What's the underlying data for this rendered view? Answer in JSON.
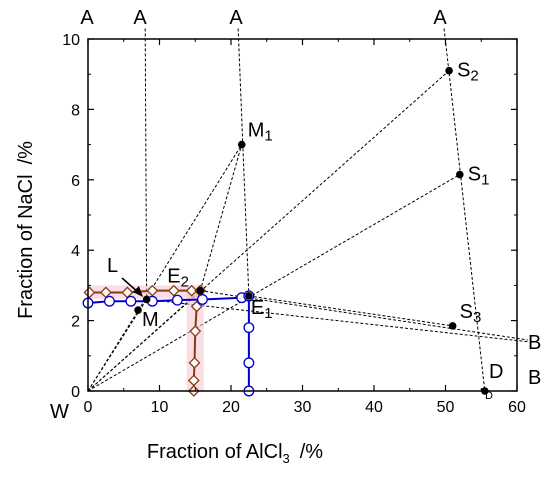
{
  "chart_data": {
    "type": "scatter",
    "title": "",
    "xlabel": "Fraction of AlCl",
    "xlabel_sub": "3",
    "xlabel_unit": "/%",
    "ylabel": "Fraction of NaCl",
    "ylabel_unit": "/%",
    "xlim": [
      0,
      60
    ],
    "ylim": [
      0,
      10
    ],
    "xticks": [
      0,
      10,
      20,
      30,
      40,
      50,
      60
    ],
    "yticks": [
      0,
      2,
      4,
      6,
      8,
      10
    ],
    "grid": false,
    "legend": "none",
    "colors": {
      "brown": "#8B3A0F",
      "blue": "#0000CC",
      "pink_highlight": "#F4C2D0",
      "point": "#000000",
      "dashed": "#000000"
    },
    "series": [
      {
        "style": "brown-diamond-line",
        "points": [
          {
            "x": 0.2,
            "y": 2.8
          },
          {
            "x": 2.5,
            "y": 2.8
          },
          {
            "x": 5.5,
            "y": 2.8
          },
          {
            "x": 9.0,
            "y": 2.85
          },
          {
            "x": 12.0,
            "y": 2.85
          },
          {
            "x": 14.5,
            "y": 2.85
          },
          {
            "x": 15.7,
            "y": 2.85
          }
        ]
      },
      {
        "style": "brown-diamond-line-vertical",
        "points": [
          {
            "x": 15.7,
            "y": 2.85
          },
          {
            "x": 15.2,
            "y": 2.4
          },
          {
            "x": 15.0,
            "y": 1.7
          },
          {
            "x": 14.9,
            "y": 0.8
          },
          {
            "x": 14.8,
            "y": 0.3
          },
          {
            "x": 14.8,
            "y": 0.0
          }
        ]
      },
      {
        "style": "blue-circle-line",
        "points": [
          {
            "x": 0.0,
            "y": 2.5
          },
          {
            "x": 3.0,
            "y": 2.55
          },
          {
            "x": 6.0,
            "y": 2.55
          },
          {
            "x": 9.0,
            "y": 2.55
          },
          {
            "x": 12.5,
            "y": 2.58
          },
          {
            "x": 16.0,
            "y": 2.6
          },
          {
            "x": 21.5,
            "y": 2.65
          },
          {
            "x": 22.5,
            "y": 2.7
          }
        ]
      },
      {
        "style": "blue-circle-line-vertical",
        "points": [
          {
            "x": 22.5,
            "y": 2.7
          },
          {
            "x": 22.5,
            "y": 1.8
          },
          {
            "x": 22.5,
            "y": 0.8
          },
          {
            "x": 22.5,
            "y": 0.0
          }
        ]
      }
    ],
    "key_points": [
      {
        "label": "S",
        "sub": "2",
        "x": 50.5,
        "y": 9.1
      },
      {
        "label": "S",
        "sub": "1",
        "x": 52.0,
        "y": 6.15
      },
      {
        "label": "S",
        "sub": "3",
        "x": 51.0,
        "y": 1.85
      },
      {
        "label": "M",
        "sub": "1",
        "x": 21.5,
        "y": 7.0
      },
      {
        "label": "M",
        "sub": "",
        "x": 7.0,
        "y": 2.3
      },
      {
        "label": "E",
        "sub": "2",
        "x": 15.7,
        "y": 2.85
      },
      {
        "label": "E",
        "sub": "1",
        "x": 22.5,
        "y": 2.7
      },
      {
        "label": "",
        "sub": "",
        "x": 8.2,
        "y": 2.6
      },
      {
        "label": "",
        "sub": "",
        "x": 55.5,
        "y": 0.0
      }
    ],
    "annotations": {
      "L": "L",
      "W": "W",
      "A_labels": [
        "A",
        "A",
        "A",
        "A"
      ],
      "B_labels": [
        "B",
        "B"
      ],
      "D_label": "D",
      "D_small": "D"
    },
    "tie_lines": [
      {
        "from": [
          0,
          0
        ],
        "to": [
          50.5,
          9.1
        ]
      },
      {
        "from": [
          0,
          0
        ],
        "to": [
          52.0,
          6.15
        ]
      },
      {
        "from": [
          0,
          0
        ],
        "to": [
          21.5,
          7.0
        ]
      },
      {
        "from": [
          0,
          0
        ],
        "to": [
          15.7,
          2.85
        ]
      },
      {
        "from": [
          0,
          0
        ],
        "to": [
          8.2,
          2.6
        ]
      },
      {
        "from": [
          0,
          0
        ],
        "to": [
          55.5,
          0.0
        ]
      },
      {
        "from": [
          8.0,
          10.3
        ],
        "to": [
          8.2,
          2.6
        ]
      },
      {
        "from": [
          21.0,
          10.3
        ],
        "to": [
          22.5,
          2.7
        ]
      },
      {
        "from": [
          15.7,
          2.85
        ],
        "to": [
          21.5,
          7.0
        ]
      },
      {
        "from": [
          49.8,
          10.3
        ],
        "to": [
          55.5,
          0.0
        ]
      },
      {
        "from": [
          8.2,
          2.6
        ],
        "to": [
          61.5,
          1.4
        ]
      },
      {
        "from": [
          22.5,
          2.7
        ],
        "to": [
          51.0,
          1.85
        ]
      },
      {
        "from": [
          15.7,
          2.85
        ],
        "to": [
          61.5,
          1.45
        ]
      }
    ]
  }
}
